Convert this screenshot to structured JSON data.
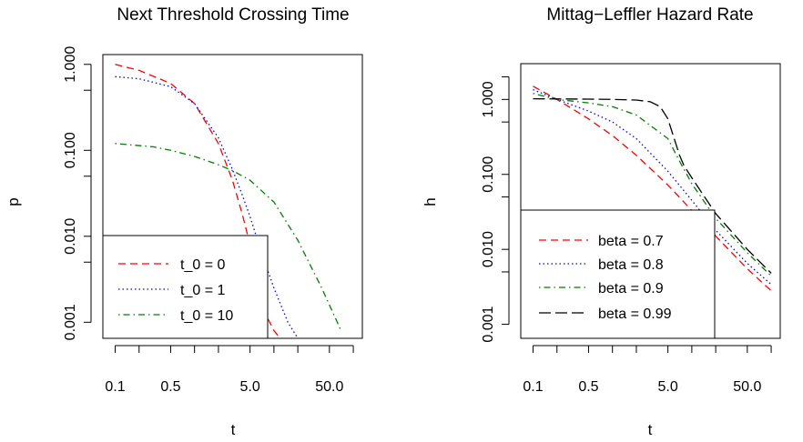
{
  "chart_data": [
    {
      "type": "line",
      "title": "Next Threshold Crossing Time",
      "xlabel": "t",
      "ylabel": "p",
      "xscale": "log",
      "yscale": "log",
      "xlim": [
        0.07,
        130
      ],
      "ylim": [
        0.00065,
        1.3
      ],
      "xticks": [
        0.1,
        0.5,
        5.0,
        50.0
      ],
      "xtick_labels": [
        "0.1",
        "0.5",
        "5.0",
        "50.0"
      ],
      "yticks": [
        0.001,
        0.01,
        0.1,
        1.0
      ],
      "ytick_labels": [
        "0.001",
        "0.010",
        "0.100",
        "1.000"
      ],
      "legend_position": "bottom-left",
      "series": [
        {
          "name": "t_0 = 0",
          "color": "#ff0000",
          "dash": "dashed",
          "x": [
            0.1,
            0.2,
            0.5,
            1,
            2,
            3,
            4,
            5,
            6,
            8,
            10,
            12
          ],
          "y": [
            1.0,
            0.85,
            0.6,
            0.35,
            0.12,
            0.045,
            0.018,
            0.008,
            0.0035,
            0.0012,
            0.0008,
            0.00065
          ]
        },
        {
          "name": "t_0 = 1",
          "color": "#0000ff",
          "dash": "dotted",
          "x": [
            0.1,
            0.2,
            0.5,
            1,
            2,
            3,
            4,
            5,
            6,
            8,
            10,
            15,
            20
          ],
          "y": [
            0.72,
            0.68,
            0.55,
            0.35,
            0.14,
            0.06,
            0.03,
            0.017,
            0.01,
            0.0045,
            0.0025,
            0.001,
            0.00065
          ]
        },
        {
          "name": "t_0 = 10",
          "color": "#007f00",
          "dash": "dotdash",
          "x": [
            0.1,
            0.3,
            0.5,
            1,
            2,
            3,
            5,
            10,
            20,
            40,
            70
          ],
          "y": [
            0.12,
            0.11,
            0.1,
            0.085,
            0.068,
            0.058,
            0.045,
            0.025,
            0.009,
            0.0025,
            0.0008
          ]
        }
      ]
    },
    {
      "type": "line",
      "title": "Mittag−Leffler Hazard Rate",
      "xlabel": "t",
      "ylabel": "h",
      "xscale": "log",
      "yscale": "log",
      "xlim": [
        0.07,
        130
      ],
      "ylim": [
        0.00065,
        3.0
      ],
      "xticks": [
        0.1,
        0.5,
        5.0,
        50.0
      ],
      "xtick_labels": [
        "0.1",
        "0.5",
        "5.0",
        "50.0"
      ],
      "yticks": [
        0.001,
        0.01,
        0.1,
        1.0
      ],
      "ytick_labels": [
        "0.001",
        "0.010",
        "0.100",
        "1.000"
      ],
      "legend_position": "bottom-left",
      "series": [
        {
          "name": "beta = 0.7",
          "color": "#ff0000",
          "dash": "dashed",
          "x": [
            0.1,
            0.2,
            0.5,
            1,
            2,
            5,
            10,
            20,
            50,
            100
          ],
          "y": [
            1.5,
            1.0,
            0.55,
            0.33,
            0.18,
            0.072,
            0.033,
            0.015,
            0.0055,
            0.0028
          ]
        },
        {
          "name": "beta = 0.8",
          "color": "#0000ff",
          "dash": "dotted",
          "x": [
            0.1,
            0.2,
            0.5,
            1,
            2,
            5,
            10,
            20,
            50,
            100
          ],
          "y": [
            1.35,
            1.0,
            0.7,
            0.5,
            0.3,
            0.11,
            0.045,
            0.018,
            0.0065,
            0.0034
          ]
        },
        {
          "name": "beta = 0.9",
          "color": "#007f00",
          "dash": "dotdash",
          "x": [
            0.1,
            0.2,
            0.5,
            1,
            2,
            5,
            7,
            10,
            20,
            50,
            100
          ],
          "y": [
            1.2,
            1.0,
            0.9,
            0.8,
            0.62,
            0.3,
            0.15,
            0.075,
            0.026,
            0.009,
            0.0044
          ]
        },
        {
          "name": "beta = 0.99",
          "color": "#000000",
          "dash": "longdash",
          "x": [
            0.1,
            0.5,
            1,
            2,
            3,
            4,
            5,
            6,
            7,
            8,
            10,
            20,
            50,
            100
          ],
          "y": [
            1.02,
            1.01,
            1.0,
            0.98,
            0.93,
            0.8,
            0.55,
            0.3,
            0.18,
            0.13,
            0.09,
            0.03,
            0.01,
            0.0048
          ]
        }
      ]
    }
  ]
}
